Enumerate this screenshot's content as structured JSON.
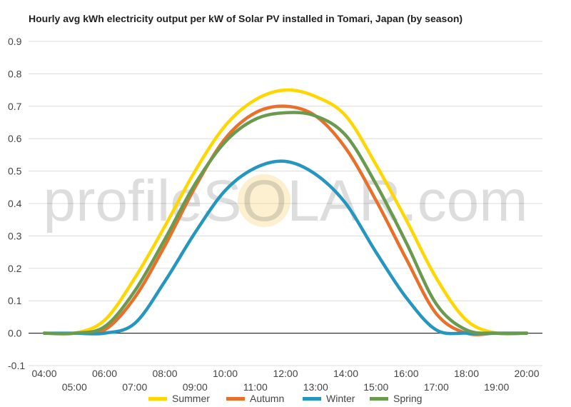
{
  "chart_data": {
    "type": "line",
    "title": "Hourly avg kWh electricity output per kW of Solar PV installed in Tomari, Japan (by season)",
    "xlabel": "",
    "ylabel": "",
    "ylim": [
      -0.1,
      0.9
    ],
    "yticks": [
      "-0.1",
      "0.0",
      "0.1",
      "0.2",
      "0.3",
      "0.4",
      "0.5",
      "0.6",
      "0.7",
      "0.8",
      "0.9"
    ],
    "categories": [
      "04:00",
      "05:00",
      "06:00",
      "07:00",
      "08:00",
      "09:00",
      "10:00",
      "11:00",
      "12:00",
      "13:00",
      "14:00",
      "15:00",
      "16:00",
      "17:00",
      "18:00",
      "19:00",
      "20:00"
    ],
    "grid": true,
    "legend": "bottom",
    "series": [
      {
        "name": "Summer",
        "color": "#FFD700",
        "values": [
          0.0,
          0.0,
          0.04,
          0.17,
          0.33,
          0.5,
          0.64,
          0.72,
          0.75,
          0.73,
          0.67,
          0.52,
          0.35,
          0.17,
          0.04,
          0.0,
          0.0
        ]
      },
      {
        "name": "Autumn",
        "color": "#E8702A",
        "values": [
          0.0,
          0.0,
          0.01,
          0.11,
          0.27,
          0.45,
          0.6,
          0.68,
          0.7,
          0.67,
          0.57,
          0.41,
          0.23,
          0.06,
          0.0,
          0.0,
          0.0
        ]
      },
      {
        "name": "Winter",
        "color": "#2596BE",
        "values": [
          0.0,
          0.0,
          0.0,
          0.03,
          0.16,
          0.31,
          0.44,
          0.51,
          0.53,
          0.49,
          0.4,
          0.25,
          0.11,
          0.01,
          0.0,
          0.0,
          0.0
        ]
      },
      {
        "name": "Spring",
        "color": "#6A9A4D",
        "values": [
          0.0,
          0.0,
          0.02,
          0.13,
          0.29,
          0.46,
          0.59,
          0.66,
          0.68,
          0.67,
          0.61,
          0.46,
          0.28,
          0.09,
          0.01,
          0.0,
          0.0
        ]
      }
    ],
    "watermark": "profileSOLAR.com"
  }
}
